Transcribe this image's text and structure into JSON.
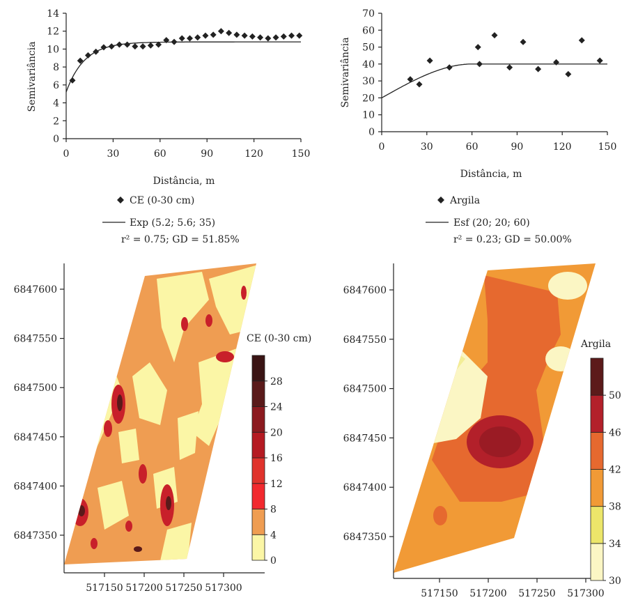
{
  "chart_data": [
    {
      "id": "ce_semivariogram",
      "type": "scatter",
      "xlabel": "Distância, m",
      "ylabel": "Semivariância",
      "xlim": [
        0,
        150
      ],
      "ylim": [
        0,
        14
      ],
      "xticks": [
        0,
        30,
        60,
        90,
        120,
        150
      ],
      "yticks": [
        0,
        2,
        4,
        6,
        8,
        10,
        12,
        14
      ],
      "series": [
        {
          "name": "CE (0-30 cm)",
          "marker": "diamond",
          "x": [
            4,
            9,
            14,
            19,
            24,
            29,
            34,
            39,
            44,
            49,
            54,
            59,
            64,
            69,
            74,
            79,
            84,
            89,
            94,
            99,
            104,
            109,
            114,
            119,
            124,
            129,
            134,
            139,
            144,
            149
          ],
          "y": [
            6.5,
            8.7,
            9.3,
            9.7,
            10.2,
            10.3,
            10.5,
            10.5,
            10.3,
            10.3,
            10.4,
            10.5,
            11.0,
            10.8,
            11.2,
            11.2,
            11.3,
            11.5,
            11.6,
            12.0,
            11.8,
            11.6,
            11.5,
            11.4,
            11.3,
            11.2,
            11.3,
            11.4,
            11.5,
            11.5
          ]
        }
      ],
      "model": {
        "label": "Exp (5.2; 5.6; 35)",
        "type": "exponential",
        "nugget": 5.2,
        "contribution": 5.6,
        "range": 35
      },
      "stats": "r² = 0.75; GD = 51.85%"
    },
    {
      "id": "argila_semivariogram",
      "type": "scatter",
      "xlabel": "Distância, m",
      "ylabel": "Semivariância",
      "xlim": [
        0,
        150
      ],
      "ylim": [
        0,
        70
      ],
      "xticks": [
        0,
        30,
        60,
        90,
        120,
        150
      ],
      "yticks": [
        0,
        10,
        20,
        30,
        40,
        50,
        60,
        70
      ],
      "series": [
        {
          "name": "Argila",
          "marker": "diamond",
          "x": [
            19,
            25,
            32,
            45,
            64,
            65,
            75,
            85,
            94,
            104,
            116,
            124,
            133,
            145
          ],
          "y": [
            31,
            28,
            42,
            38,
            50,
            40,
            57,
            38,
            53,
            37,
            41,
            34,
            54,
            42
          ]
        }
      ],
      "model": {
        "label": "Esf (20; 20; 60)",
        "type": "spherical",
        "nugget": 20,
        "contribution": 20,
        "range": 60
      },
      "stats": "r² = 0.23; GD = 50.00%"
    },
    {
      "id": "ce_map",
      "type": "heatmap",
      "colorbar_title": "CE (0-30 cm)",
      "colorbar_ticks": [
        "0",
        "4",
        "8",
        "12",
        "16",
        "20",
        "24",
        "28"
      ],
      "colorbar_colors": [
        "#fbf6a6",
        "#ef9d52",
        "#f2292e",
        "#e0332c",
        "#b51a22",
        "#8c1a1f",
        "#5a1a1a",
        "#3a1414"
      ],
      "y_ticks": [
        "6847350",
        "6847400",
        "6847450",
        "6847500",
        "6847550",
        "6847600"
      ],
      "x_ticks": [
        "517150",
        "517200",
        "517250",
        "517300"
      ]
    },
    {
      "id": "argila_map",
      "type": "heatmap",
      "colorbar_title": "Argila",
      "colorbar_ticks": [
        "30",
        "34",
        "38",
        "42",
        "46",
        "50"
      ],
      "colorbar_colors": [
        "#fbf6c4",
        "#ece66a",
        "#f19a36",
        "#e6692f",
        "#b3202a",
        "#5c1a1a"
      ],
      "y_ticks": [
        "6847350",
        "6847400",
        "6847450",
        "6847500",
        "6847550",
        "6847600"
      ],
      "x_ticks": [
        "517150",
        "517200",
        "517250",
        "517300"
      ]
    }
  ]
}
